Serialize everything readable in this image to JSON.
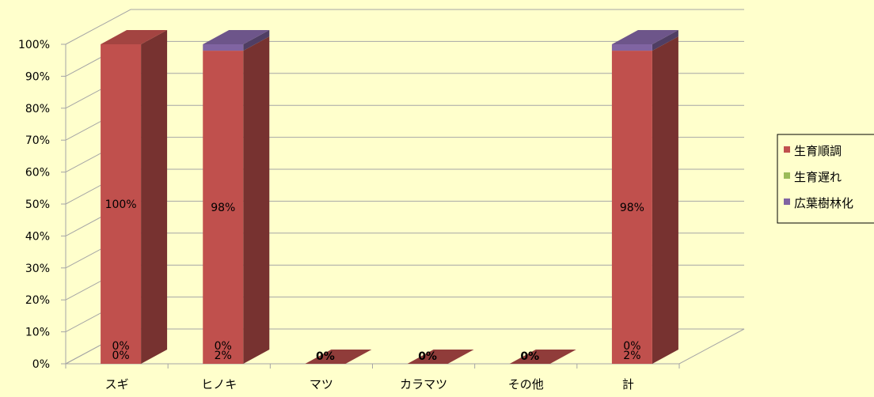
{
  "chart_data": {
    "type": "bar",
    "stacked": "percent",
    "three_d": true,
    "categories": [
      "スギ",
      "ヒノキ",
      "マツ",
      "カラマツ",
      "その他",
      "計"
    ],
    "series": [
      {
        "name": "生育順調",
        "color": "#C0504D",
        "values": [
          100,
          98,
          0,
          0,
          0,
          98
        ],
        "labels": [
          "100%",
          "98%",
          "0%",
          "0%",
          "0%",
          "98%"
        ]
      },
      {
        "name": "生育遅れ",
        "color": "#9BBB59",
        "values": [
          0,
          0,
          0,
          0,
          0,
          0
        ],
        "labels": [
          "0%",
          "0%",
          "",
          "",
          "",
          "0%"
        ]
      },
      {
        "name": "広葉樹林化",
        "color": "#8064A2",
        "values": [
          0,
          2,
          0,
          0,
          0,
          2
        ],
        "labels": [
          "0%",
          "2%",
          "",
          "",
          "",
          "2%"
        ]
      }
    ],
    "ylim": [
      0,
      100
    ],
    "yticks": [
      "0%",
      "10%",
      "20%",
      "30%",
      "40%",
      "50%",
      "60%",
      "70%",
      "80%",
      "90%",
      "100%"
    ],
    "grid": true,
    "legend": "right",
    "background": "#FFFFCC"
  }
}
